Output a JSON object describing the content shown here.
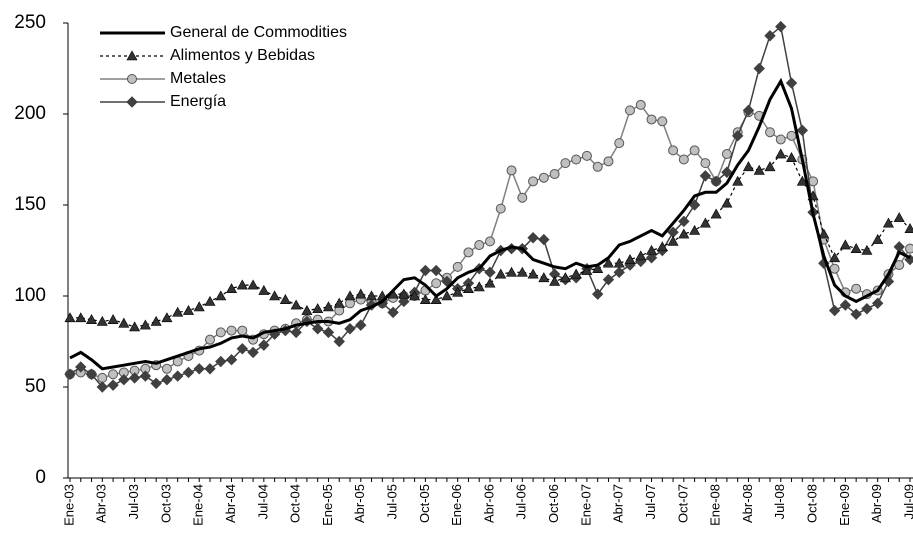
{
  "chart_data": {
    "type": "line",
    "categories": [
      "Ene-03",
      null,
      null,
      "Abr-03",
      null,
      null,
      "Jul-03",
      null,
      null,
      "Oct-03",
      null,
      null,
      "Ene-04",
      null,
      null,
      "Abr-04",
      null,
      null,
      "Jul-04",
      null,
      null,
      "Oct-04",
      null,
      null,
      "Ene-05",
      null,
      null,
      "Abr-05",
      null,
      null,
      "Jul-05",
      null,
      null,
      "Oct-05",
      null,
      null,
      "Ene-06",
      null,
      null,
      "Abr-06",
      null,
      null,
      "Jul-06",
      null,
      null,
      "Oct-06",
      null,
      null,
      "Ene-07",
      null,
      null,
      "Abr-07",
      null,
      null,
      "Jul-07",
      null,
      null,
      "Oct-07",
      null,
      null,
      "Ene-08",
      null,
      null,
      "Abr-08",
      null,
      null,
      "Jul-08",
      null,
      null,
      "Oct-08",
      null,
      null,
      "Ene-09",
      null,
      null,
      "Abr-09",
      null,
      null,
      "Jul-09"
    ],
    "series": [
      {
        "name": "General de Commodities",
        "color": "#000000",
        "width": 3,
        "dash": false,
        "marker": "none",
        "values": [
          66,
          69,
          65,
          60,
          61,
          62,
          63,
          64,
          63,
          65,
          67,
          69,
          71,
          72,
          74,
          77,
          78,
          77,
          80,
          81,
          82,
          84,
          85,
          86,
          86,
          85,
          87,
          92,
          94,
          97,
          103,
          109,
          110,
          106,
          100,
          104,
          110,
          113,
          115,
          122,
          125,
          127,
          126,
          120,
          118,
          116,
          115,
          118,
          116,
          117,
          121,
          128,
          130,
          133,
          136,
          133,
          140,
          147,
          155,
          157,
          157,
          162,
          172,
          180,
          193,
          208,
          218,
          203,
          175,
          145,
          122,
          106,
          100,
          97,
          100,
          103,
          112,
          124,
          121
        ]
      },
      {
        "name": "Alimentos y Bebidas",
        "color": "#000000",
        "width": 1.2,
        "dash": true,
        "marker": "triangle",
        "values": [
          88,
          88,
          87,
          86,
          87,
          85,
          83,
          84,
          86,
          88,
          91,
          92,
          94,
          97,
          100,
          104,
          106,
          106,
          103,
          100,
          98,
          95,
          92,
          93,
          94,
          96,
          100,
          101,
          100,
          100,
          101,
          101,
          100,
          98,
          98,
          100,
          102,
          104,
          105,
          107,
          112,
          113,
          113,
          112,
          110,
          108,
          110,
          112,
          114,
          115,
          118,
          118,
          120,
          122,
          125,
          127,
          130,
          134,
          136,
          140,
          145,
          151,
          163,
          171,
          169,
          171,
          178,
          176,
          163,
          155,
          134,
          121,
          128,
          126,
          125,
          131,
          140,
          143,
          137
        ]
      },
      {
        "name": "Metales",
        "color": "#808080",
        "width": 1.5,
        "dash": false,
        "marker": "circle",
        "values": [
          57,
          58,
          57,
          55,
          57,
          58,
          59,
          60,
          62,
          60,
          64,
          67,
          70,
          76,
          80,
          81,
          81,
          76,
          79,
          81,
          82,
          85,
          87,
          87,
          86,
          92,
          96,
          98,
          97,
          96,
          99,
          100,
          100,
          103,
          107,
          110,
          116,
          124,
          128,
          130,
          148,
          169,
          154,
          163,
          165,
          167,
          173,
          175,
          177,
          171,
          174,
          184,
          202,
          205,
          197,
          196,
          180,
          175,
          180,
          173,
          163,
          178,
          190,
          201,
          199,
          190,
          186,
          188,
          175,
          163,
          131,
          115,
          102,
          104,
          101,
          103,
          112,
          117,
          126
        ]
      },
      {
        "name": "Energía",
        "color": "#404040",
        "width": 1.5,
        "dash": false,
        "marker": "diamond",
        "values": [
          57,
          61,
          57,
          50,
          51,
          54,
          55,
          56,
          52,
          54,
          56,
          58,
          60,
          60,
          64,
          65,
          71,
          69,
          73,
          79,
          81,
          80,
          86,
          82,
          80,
          75,
          82,
          84,
          95,
          96,
          91,
          97,
          102,
          114,
          114,
          108,
          104,
          107,
          115,
          113,
          125,
          126,
          126,
          132,
          131,
          112,
          109,
          110,
          115,
          101,
          109,
          113,
          117,
          119,
          121,
          125,
          135,
          141,
          150,
          166,
          163,
          168,
          188,
          202,
          225,
          243,
          248,
          217,
          191,
          146,
          118,
          92,
          95,
          90,
          93,
          96,
          108,
          127,
          120
        ]
      }
    ],
    "ylim": [
      0,
      250
    ],
    "yticks": [
      0,
      50,
      100,
      150,
      200,
      250
    ],
    "grid": false,
    "legend": "upper left"
  }
}
